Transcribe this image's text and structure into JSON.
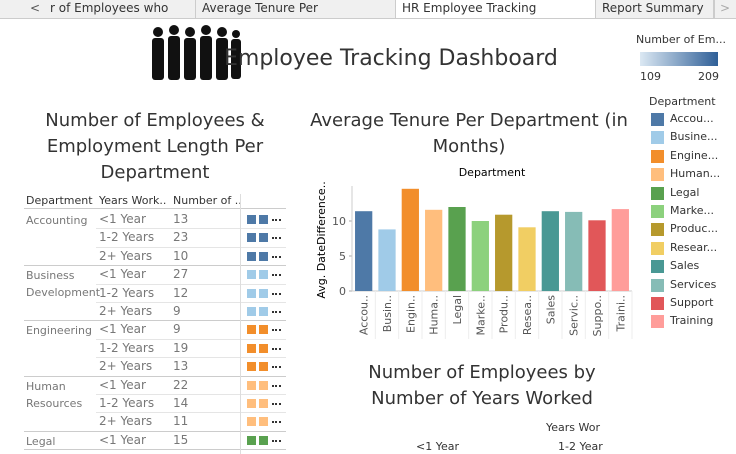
{
  "tabs": [
    "r of Employees who wor...",
    "Average Tenure Per Departmen...",
    "HR Employee Tracking Dashbo...",
    "Report Summary"
  ],
  "title": "Employee Tracking Dashboard",
  "color_legend": {
    "title": "Number of Em...",
    "min": "109",
    "max": "209"
  },
  "department_legend": {
    "title": "Department",
    "items": [
      {
        "label": "Accou...",
        "color": "#4e79a7"
      },
      {
        "label": "Busine...",
        "color": "#a0cbe8"
      },
      {
        "label": "Engine...",
        "color": "#f28e2b"
      },
      {
        "label": "Human...",
        "color": "#ffbe7d"
      },
      {
        "label": "Legal",
        "color": "#59a14f"
      },
      {
        "label": "Marke...",
        "color": "#8cd17d"
      },
      {
        "label": "Produc...",
        "color": "#b6992d"
      },
      {
        "label": "Resear...",
        "color": "#f1ce63"
      },
      {
        "label": "Sales",
        "color": "#499894"
      },
      {
        "label": "Services",
        "color": "#86bcb6"
      },
      {
        "label": "Support",
        "color": "#e15759"
      },
      {
        "label": "Training",
        "color": "#ff9d9a"
      }
    ]
  },
  "table": {
    "title": "Number of Employees & Employment Length Per Department",
    "headers": [
      "Department",
      "Years Work..",
      "Number of .."
    ],
    "groups": [
      {
        "department": "Accounting",
        "rows": [
          [
            "<1 Year",
            "13"
          ],
          [
            "1-2 Years",
            "23"
          ],
          [
            "2+ Years",
            "10"
          ]
        ]
      },
      {
        "department": "Business Development",
        "rows": [
          [
            "<1 Year",
            "27"
          ],
          [
            "1-2 Years",
            "12"
          ],
          [
            "2+ Years",
            "9"
          ]
        ]
      },
      {
        "department": "Engineering",
        "rows": [
          [
            "<1 Year",
            "9"
          ],
          [
            "1-2 Years",
            "19"
          ],
          [
            "2+ Years",
            "13"
          ]
        ]
      },
      {
        "department": "Human Resources",
        "rows": [
          [
            "<1 Year",
            "22"
          ],
          [
            "1-2 Years",
            "14"
          ],
          [
            "2+ Years",
            "11"
          ]
        ]
      },
      {
        "department": "Legal",
        "rows": [
          [
            "<1 Year",
            "15"
          ]
        ]
      }
    ]
  },
  "chart_data": {
    "type": "bar",
    "title": "Average Tenure Per Department (in Months)",
    "x_label": "Department",
    "y_label": "Avg. DateDifference..",
    "categories": [
      "Accou..",
      "Busin..",
      "Engin..",
      "Huma..",
      "Legal",
      "Marke..",
      "Produ..",
      "Resea..",
      "Sales",
      "Servic..",
      "Suppo..",
      "Traini.."
    ],
    "values": [
      11.4,
      8.8,
      14.6,
      11.6,
      12.0,
      10.0,
      10.9,
      9.1,
      11.4,
      11.3,
      10.1,
      11.7
    ],
    "colors": [
      "#4e79a7",
      "#a0cbe8",
      "#f28e2b",
      "#ffbe7d",
      "#59a14f",
      "#8cd17d",
      "#b6992d",
      "#f1ce63",
      "#499894",
      "#86bcb6",
      "#e15759",
      "#ff9d9a"
    ],
    "ylim": [
      0,
      15
    ],
    "yticks": [
      0,
      5,
      10
    ]
  },
  "years_chart": {
    "title": "Number of Employees by Number of Years Worked",
    "header": "Years Wor",
    "columns": [
      "<1 Year",
      "1-2 Year"
    ]
  }
}
